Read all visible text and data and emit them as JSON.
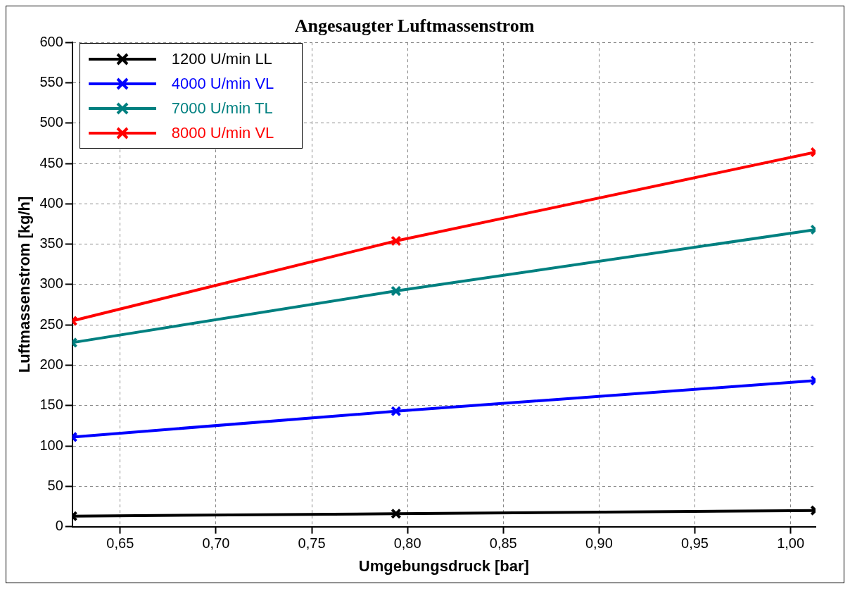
{
  "chart_data": {
    "type": "line",
    "title": "Angesaugter Luftmassenstrom",
    "xlabel": "Umgebungsdruck [bar]",
    "ylabel": "Luftmassenstrom [kg/h]",
    "x": [
      0.625,
      0.794,
      1.013
    ],
    "series": [
      {
        "name": "1200 U/min LL",
        "color": "#000000",
        "values": [
          13,
          16,
          20
        ]
      },
      {
        "name": "4000 U/min VL",
        "color": "#0000ff",
        "values": [
          111,
          143,
          181
        ]
      },
      {
        "name": "7000 U/min TL",
        "color": "#008080",
        "values": [
          228,
          292,
          368
        ]
      },
      {
        "name": "8000 U/min VL",
        "color": "#ff0000",
        "values": [
          255,
          354,
          464
        ]
      }
    ],
    "xlim": [
      0.625,
      1.013
    ],
    "xticks": [
      {
        "value": 0.65,
        "label": "0,65"
      },
      {
        "value": 0.7,
        "label": "0,70"
      },
      {
        "value": 0.75,
        "label": "0,75"
      },
      {
        "value": 0.8,
        "label": "0,80"
      },
      {
        "value": 0.85,
        "label": "0,85"
      },
      {
        "value": 0.9,
        "label": "0,90"
      },
      {
        "value": 0.95,
        "label": "0,95"
      },
      {
        "value": 1.0,
        "label": "1,00"
      }
    ],
    "ylim": [
      0,
      600
    ],
    "yticks": [
      0,
      50,
      100,
      150,
      200,
      250,
      300,
      350,
      400,
      450,
      500,
      550,
      600
    ],
    "grid": true,
    "legend": "top left",
    "marker": "cross",
    "line_style": "solid"
  }
}
